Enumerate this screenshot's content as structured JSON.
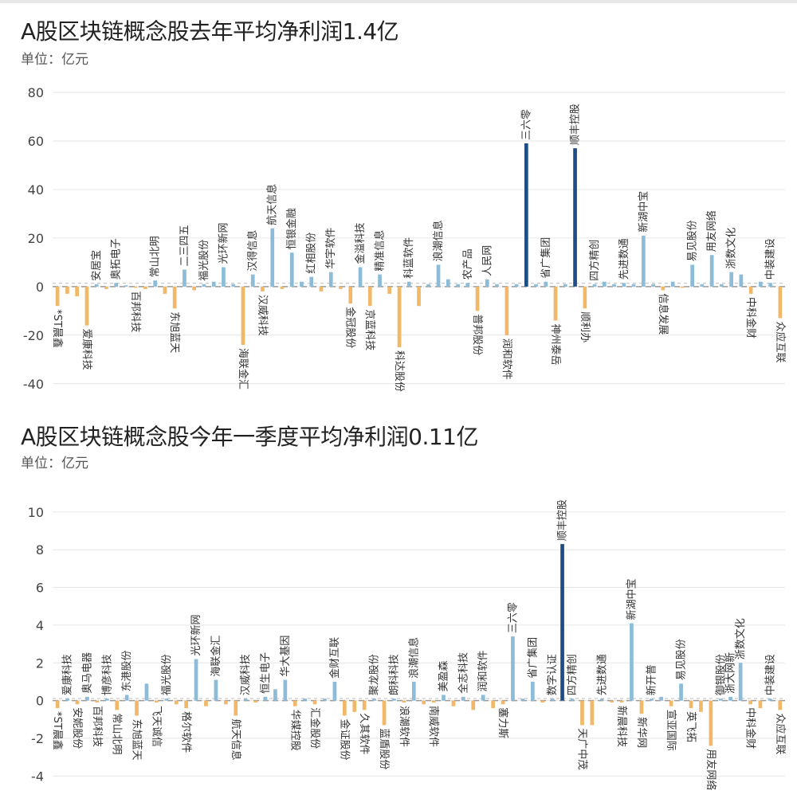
{
  "colors": {
    "positive": "#8cbcd8",
    "positive_highlight": "#1f4e86",
    "negative": "#f0b868",
    "negative_highlight": "#e09a4a",
    "grid": "#e6e6e6",
    "zero_line": "#9a9a9a",
    "tick_text": "#444444"
  },
  "chart_data": [
    {
      "type": "bar",
      "title": "A股区块链概念股去年平均净利润1.4亿",
      "unit_label": "单位：亿元",
      "average": 1.4,
      "ylim": [
        -45,
        80
      ],
      "yticks": [
        -40,
        -20,
        0,
        20,
        40,
        60,
        80
      ],
      "grid": true,
      "bars": [
        {
          "name": "*ST晨鑫",
          "value": -8
        },
        {
          "name": "",
          "value": -3
        },
        {
          "name": "",
          "value": -4
        },
        {
          "name": "爱康科技",
          "value": -16
        },
        {
          "name": "安居宝",
          "value": 1
        },
        {
          "name": "",
          "value": -1
        },
        {
          "name": "奥拓电子",
          "value": 1.5
        },
        {
          "name": "",
          "value": 0.5
        },
        {
          "name": "百邦科技",
          "value": -0.5
        },
        {
          "name": "",
          "value": -1
        },
        {
          "name": "常山北明",
          "value": 2.5
        },
        {
          "name": "",
          "value": -3
        },
        {
          "name": "东旭蓝天",
          "value": -9
        },
        {
          "name": "二三四五",
          "value": 7
        },
        {
          "name": "",
          "value": -1.5
        },
        {
          "name": "福光股份",
          "value": 1
        },
        {
          "name": "",
          "value": 2
        },
        {
          "name": "光环新网",
          "value": 8
        },
        {
          "name": "",
          "value": 1
        },
        {
          "name": "海联金汇",
          "value": -24
        },
        {
          "name": "汉得信息",
          "value": 5
        },
        {
          "name": "汉威科技",
          "value": -2
        },
        {
          "name": "航天信息",
          "value": 24
        },
        {
          "name": "",
          "value": -1
        },
        {
          "name": "恒银金融",
          "value": 14
        },
        {
          "name": "",
          "value": 2
        },
        {
          "name": "红相股份",
          "value": 4
        },
        {
          "name": "",
          "value": -2
        },
        {
          "name": "华宇软件",
          "value": 6
        },
        {
          "name": "",
          "value": -1
        },
        {
          "name": "金冠股份",
          "value": -7
        },
        {
          "name": "金溢科技",
          "value": 8
        },
        {
          "name": "京蓝科技",
          "value": -8
        },
        {
          "name": "精准信息",
          "value": 5
        },
        {
          "name": "",
          "value": -3
        },
        {
          "name": "科达股份",
          "value": -25
        },
        {
          "name": "科蓝软件",
          "value": 2
        },
        {
          "name": "",
          "value": -8
        },
        {
          "name": "",
          "value": 1
        },
        {
          "name": "浪潮信息",
          "value": 9
        },
        {
          "name": "",
          "value": 3
        },
        {
          "name": "",
          "value": 1
        },
        {
          "name": "农产品",
          "value": 1.5
        },
        {
          "name": "普邦股份",
          "value": -10
        },
        {
          "name": "人民网",
          "value": 3
        },
        {
          "name": "",
          "value": 1
        },
        {
          "name": "润和软件",
          "value": -20
        },
        {
          "name": "",
          "value": 1
        },
        {
          "name": "三六零",
          "value": 59
        },
        {
          "name": "",
          "value": 1
        },
        {
          "name": "省广集团",
          "value": 2
        },
        {
          "name": "神州泰岳",
          "value": -14
        },
        {
          "name": "",
          "value": 1
        },
        {
          "name": "顺丰控股",
          "value": 57
        },
        {
          "name": "顺利办",
          "value": -9
        },
        {
          "name": "四方精创",
          "value": 1
        },
        {
          "name": "",
          "value": 2
        },
        {
          "name": "",
          "value": 1
        },
        {
          "name": "先进数通",
          "value": 1.5
        },
        {
          "name": "",
          "value": 1
        },
        {
          "name": "新湖中宝",
          "value": 21
        },
        {
          "name": "",
          "value": 1
        },
        {
          "name": "信息发展",
          "value": -1.5
        },
        {
          "name": "",
          "value": 2
        },
        {
          "name": "",
          "value": -0.5
        },
        {
          "name": "易见股份",
          "value": 9
        },
        {
          "name": "",
          "value": 1
        },
        {
          "name": "用友网络",
          "value": 13
        },
        {
          "name": "",
          "value": 1
        },
        {
          "name": "浙数文化",
          "value": 6
        },
        {
          "name": "",
          "value": 5
        },
        {
          "name": "中科金财",
          "value": -3
        },
        {
          "name": "",
          "value": 2
        },
        {
          "name": "中装建设",
          "value": 1.5
        },
        {
          "name": "众应互联",
          "value": -13
        }
      ]
    },
    {
      "type": "bar",
      "title": "A股区块链概念股今年一季度平均净利润0.11亿",
      "unit_label": "单位：亿元",
      "average": 0.11,
      "ylim": [
        -5,
        10.5
      ],
      "yticks": [
        -4,
        -2,
        0,
        2,
        4,
        6,
        8,
        10
      ],
      "grid": true,
      "bars": [
        {
          "name": "*ST晨鑫",
          "value": -0.4
        },
        {
          "name": "爱康科技",
          "value": 0.1
        },
        {
          "name": "安妮股份",
          "value": -0.2
        },
        {
          "name": "奥马电器",
          "value": 0.2
        },
        {
          "name": "百邦科技",
          "value": -0.1
        },
        {
          "name": "博彦科技",
          "value": 0.1
        },
        {
          "name": "常山北明",
          "value": -0.5
        },
        {
          "name": "东港股份",
          "value": 0.3
        },
        {
          "name": "东旭蓝天",
          "value": -0.8
        },
        {
          "name": "",
          "value": 0.9
        },
        {
          "name": "飞天诚信",
          "value": -0.1
        },
        {
          "name": "福光股份",
          "value": 0.1
        },
        {
          "name": "",
          "value": -0.2
        },
        {
          "name": "格尔软件",
          "value": -0.4
        },
        {
          "name": "光环新网",
          "value": 2.2
        },
        {
          "name": "",
          "value": -0.3
        },
        {
          "name": "海联金汇",
          "value": 1.1
        },
        {
          "name": "",
          "value": -0.2
        },
        {
          "name": "航天信息",
          "value": -0.8
        },
        {
          "name": "汉威科技",
          "value": 0.1
        },
        {
          "name": "",
          "value": -0.1
        },
        {
          "name": "恒生电子",
          "value": 0.2
        },
        {
          "name": "",
          "value": 0.6
        },
        {
          "name": "华大基因",
          "value": 1.1
        },
        {
          "name": "华媒控股",
          "value": -0.3
        },
        {
          "name": "",
          "value": 0.1
        },
        {
          "name": "汇金股份",
          "value": -0.2
        },
        {
          "name": "",
          "value": 0.1
        },
        {
          "name": "金财互联",
          "value": 1.0
        },
        {
          "name": "金证股份",
          "value": -0.8
        },
        {
          "name": "",
          "value": -0.6
        },
        {
          "name": "久其软件",
          "value": -0.5
        },
        {
          "name": "聚龙股份",
          "value": 0.1
        },
        {
          "name": "蓝盾股份",
          "value": -1.3
        },
        {
          "name": "朗科科技",
          "value": 0.1
        },
        {
          "name": "浪潮软件",
          "value": -0.1
        },
        {
          "name": "浪潮信息",
          "value": 1.0
        },
        {
          "name": "",
          "value": -0.2
        },
        {
          "name": "南威软件",
          "value": -0.1
        },
        {
          "name": "美盈森",
          "value": 0.3
        },
        {
          "name": "",
          "value": -0.3
        },
        {
          "name": "全志科技",
          "value": 0.2
        },
        {
          "name": "",
          "value": -0.5
        },
        {
          "name": "润和软件",
          "value": 0.3
        },
        {
          "name": "",
          "value": -0.4
        },
        {
          "name": "塞力斯",
          "value": -0.2
        },
        {
          "name": "三六零",
          "value": 3.4
        },
        {
          "name": "",
          "value": 0.1
        },
        {
          "name": "省广集团",
          "value": 1.0
        },
        {
          "name": "",
          "value": -0.1
        },
        {
          "name": "数字认证",
          "value": 0.1
        },
        {
          "name": "顺丰控股",
          "value": 8.3
        },
        {
          "name": "四方精创",
          "value": 0.1
        },
        {
          "name": "天广中茂",
          "value": -1.3
        },
        {
          "name": "",
          "value": -1.3
        },
        {
          "name": "先进数通",
          "value": 0.1
        },
        {
          "name": "",
          "value": -0.1
        },
        {
          "name": "新晨科技",
          "value": -0.1
        },
        {
          "name": "新湖中宝",
          "value": 4.1
        },
        {
          "name": "新华网",
          "value": -0.7
        },
        {
          "name": "新开普",
          "value": 0.1
        },
        {
          "name": "",
          "value": 0.2
        },
        {
          "name": "宣亚国际",
          "value": -0.3
        },
        {
          "name": "易见股份",
          "value": 0.9
        },
        {
          "name": "英飞拓",
          "value": -0.4
        },
        {
          "name": "",
          "value": -0.6
        },
        {
          "name": "用友网络",
          "value": -2.4
        },
        {
          "name": "御银股份",
          "value": 0.1
        },
        {
          "name": "浙大网新",
          "value": 0.2
        },
        {
          "name": "浙数文化",
          "value": 2.0
        },
        {
          "name": "中科金财",
          "value": -0.2
        },
        {
          "name": "",
          "value": -0.4
        },
        {
          "name": "中装建设",
          "value": 0.1
        },
        {
          "name": "众应互联",
          "value": -0.5
        }
      ]
    }
  ]
}
